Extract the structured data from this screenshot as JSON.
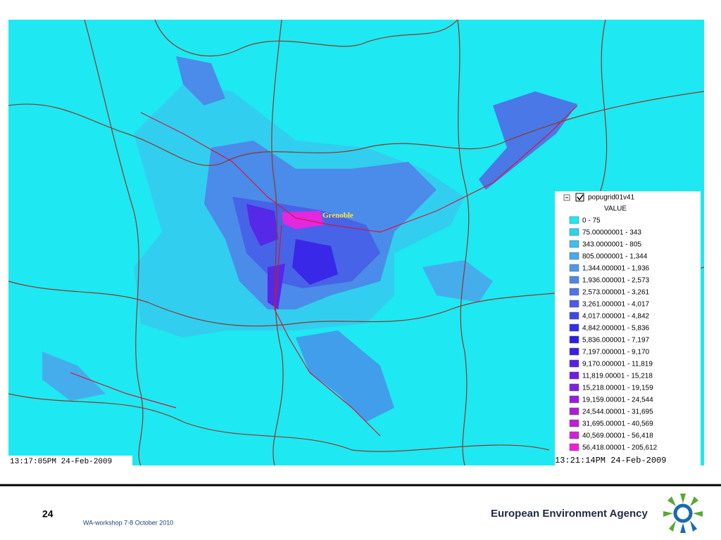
{
  "map": {
    "place_label": "Grenoble",
    "timestamp_left": "13:17:05PM 24-Feb-2009",
    "timestamp_right": "13:21:14PM 24-Feb-2009",
    "legend": {
      "layer": "popugrid01v41",
      "field": "VALUE",
      "items": [
        {
          "label": "0 - 75",
          "color": "#1ee8f2"
        },
        {
          "label": "75.00000001 - 343",
          "color": "#28d4f0"
        },
        {
          "label": "343.0000001 - 805",
          "color": "#3cc0ee"
        },
        {
          "label": "805.0000001 - 1,344",
          "color": "#48aaea"
        },
        {
          "label": "1,344.000001 - 1,936",
          "color": "#4c98ea"
        },
        {
          "label": "1,936.000001 - 2,573",
          "color": "#4e86e8"
        },
        {
          "label": "2,573.000001 - 3,261",
          "color": "#4e72e6"
        },
        {
          "label": "3,261.000001 - 4,017",
          "color": "#4a5ce6"
        },
        {
          "label": "4,017.000001 - 4,842",
          "color": "#3f46e6"
        },
        {
          "label": "4,842.000001 - 5,836",
          "color": "#2e30e8"
        },
        {
          "label": "5,836.000001 - 7,197",
          "color": "#2a1ee6"
        },
        {
          "label": "7,197.000001 - 9,170",
          "color": "#3c1ee6"
        },
        {
          "label": "9,170.000001 - 11,819",
          "color": "#5a1ee6"
        },
        {
          "label": "11,819.00001 - 15,218",
          "color": "#6e1ee0"
        },
        {
          "label": "15,218.00001 - 19,159",
          "color": "#821ee0"
        },
        {
          "label": "19,159.00001 - 24,544",
          "color": "#961edc"
        },
        {
          "label": "24,544.00001 - 31,695",
          "color": "#aa1ed8"
        },
        {
          "label": "31,695.00001 - 40,569",
          "color": "#be1ed4"
        },
        {
          "label": "40,569.00001 - 56,418",
          "color": "#d21ed4"
        },
        {
          "label": "56,418.00001 - 205,612",
          "color": "#f01edc"
        }
      ]
    }
  },
  "footer": {
    "page": "24",
    "event": "WA-workshop 7-8 October 2010",
    "agency": "European Environment Agency"
  }
}
